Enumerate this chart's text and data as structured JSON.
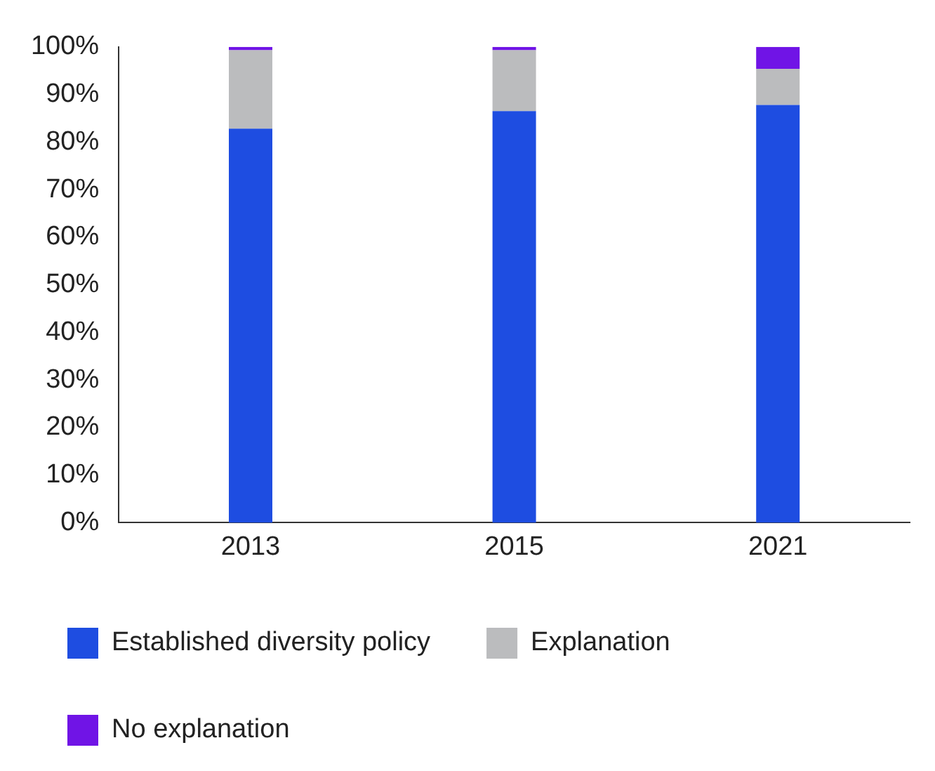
{
  "chart_data": {
    "type": "bar",
    "stacked": true,
    "categories": [
      "2013",
      "2015",
      "2021"
    ],
    "series": [
      {
        "name": "Established diversity policy",
        "color": "#1e4de1",
        "values": [
          82.8,
          86.5,
          87.8
        ]
      },
      {
        "name": "Explanation",
        "color": "#bbbcbe",
        "values": [
          16.5,
          12.8,
          7.6
        ]
      },
      {
        "name": "No explanation",
        "color": "#7014e6",
        "values": [
          0.7,
          0.7,
          4.6
        ]
      }
    ],
    "ylim": [
      0,
      100
    ],
    "yticks": [
      {
        "value": 0,
        "label": "0%"
      },
      {
        "value": 10,
        "label": "10%"
      },
      {
        "value": 20,
        "label": "20%"
      },
      {
        "value": 30,
        "label": "30%"
      },
      {
        "value": 40,
        "label": "40%"
      },
      {
        "value": 50,
        "label": "50%"
      },
      {
        "value": 60,
        "label": "60%"
      },
      {
        "value": 70,
        "label": "70%"
      },
      {
        "value": 80,
        "label": "80%"
      },
      {
        "value": 90,
        "label": "90%"
      },
      {
        "value": 100,
        "label": "100%"
      }
    ],
    "grid": false,
    "legend": "bottom"
  }
}
